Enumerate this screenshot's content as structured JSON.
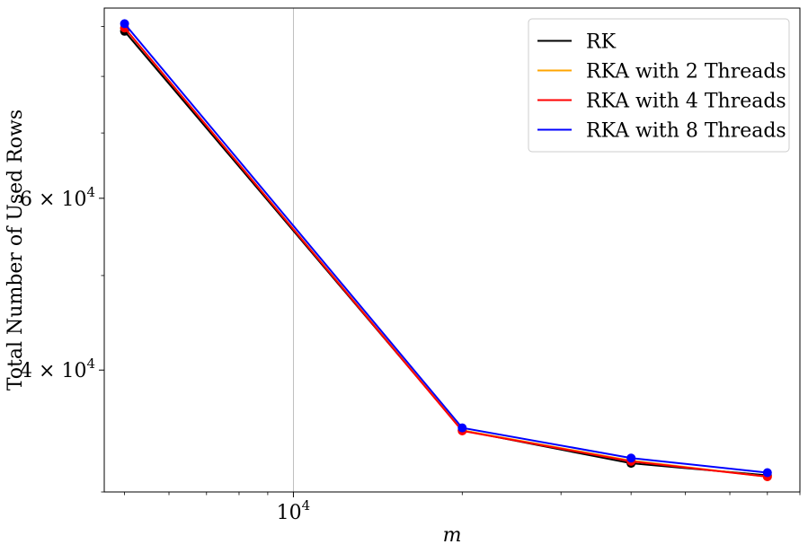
{
  "chart_data": {
    "type": "line",
    "xscale": "log",
    "yscale": "log",
    "xlabel": "m",
    "ylabel": "Total Number of Used Rows",
    "xlim": [
      4600,
      80000
    ],
    "ylim": [
      30000,
      94000
    ],
    "x_ticks": [
      {
        "value": 10000,
        "base": "10",
        "exp": "4"
      }
    ],
    "y_ticks": [
      {
        "value": 40000,
        "mant": "4",
        "base": "10",
        "exp": "4"
      },
      {
        "value": 60000,
        "mant": "6",
        "base": "10",
        "exp": "4"
      }
    ],
    "grid": "x-major",
    "legend": "top-right",
    "x": [
      5000,
      20000,
      40000,
      70000
    ],
    "series": [
      {
        "name": "RK",
        "color": "#000000",
        "values": [
          89000,
          34700,
          32100,
          31200
        ]
      },
      {
        "name": "RKA with 2 Threads",
        "color": "#FFA500",
        "values": [
          89700,
          34700,
          32300,
          31100
        ]
      },
      {
        "name": "RKA with 4 Threads",
        "color": "#FF0000",
        "values": [
          89700,
          34650,
          32250,
          31100
        ]
      },
      {
        "name": "RKA with 8 Threads",
        "color": "#0000FF",
        "values": [
          90600,
          34900,
          32500,
          31400
        ]
      }
    ]
  }
}
